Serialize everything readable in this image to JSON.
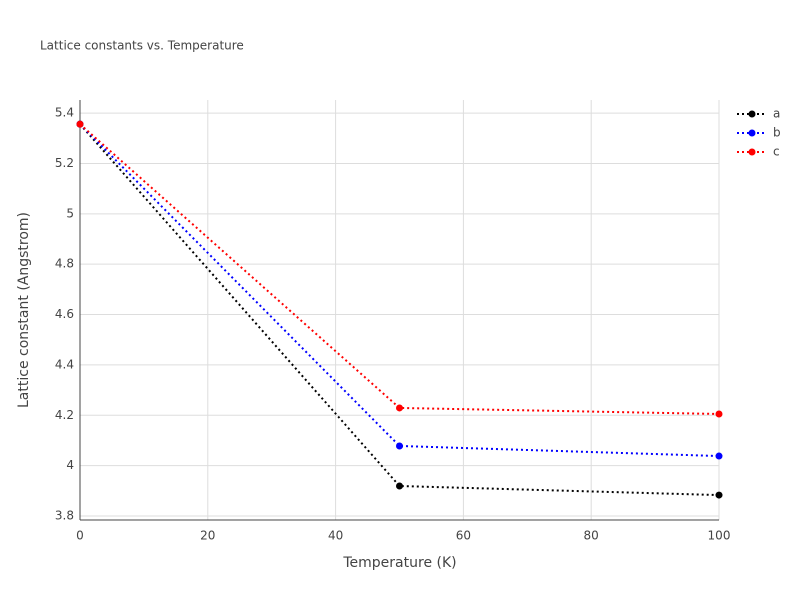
{
  "chart_data": {
    "type": "line",
    "title": "Lattice constants vs. Temperature",
    "x_label": "Temperature (K)",
    "y_label": "Lattice constant (Angstrom)",
    "x": [
      0,
      50,
      100
    ],
    "series": [
      {
        "name": "a",
        "color": "#000000",
        "values": [
          5.356,
          3.919,
          3.883
        ]
      },
      {
        "name": "b",
        "color": "#0000ff",
        "values": [
          5.356,
          4.078,
          4.038
        ]
      },
      {
        "name": "c",
        "color": "#ff0000",
        "values": [
          5.356,
          4.229,
          4.205
        ]
      }
    ],
    "xlim": [
      0,
      100
    ],
    "xticks": [
      0,
      20,
      40,
      60,
      80,
      100
    ],
    "ylim": [
      3.784,
      5.452
    ],
    "yticks": [
      3.8,
      4,
      4.2,
      4.4,
      4.6,
      4.8,
      5,
      5.2,
      5.4
    ],
    "grid": true,
    "legend": "top-right"
  }
}
